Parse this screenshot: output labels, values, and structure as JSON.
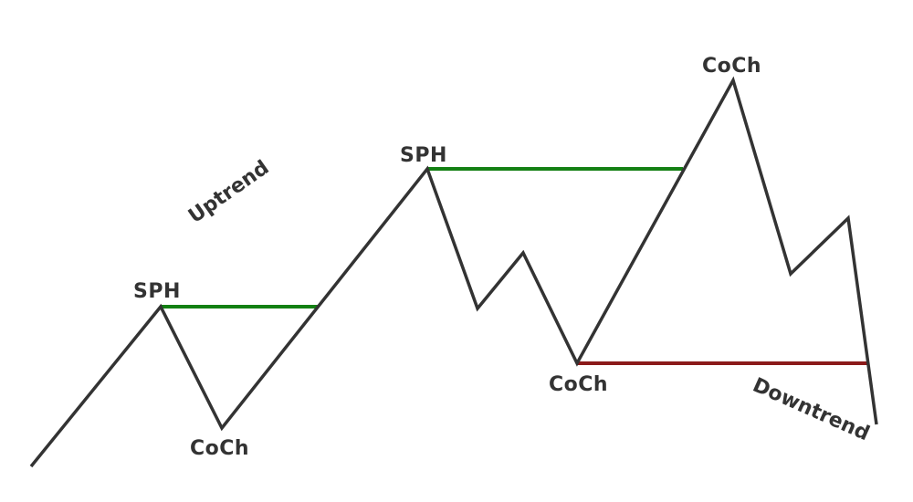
{
  "labels": {
    "sph_1": "SPH",
    "coch_1": "CoCh",
    "sph_2": "SPH",
    "coch_2": "CoCh",
    "coch_3": "CoCh",
    "uptrend": "Uptrend",
    "downtrend": "Downtrend"
  },
  "colors": {
    "price_line": "#333333",
    "bullish_level": "#138013",
    "bearish_level": "#8b1a1a",
    "text": "#333333"
  }
}
